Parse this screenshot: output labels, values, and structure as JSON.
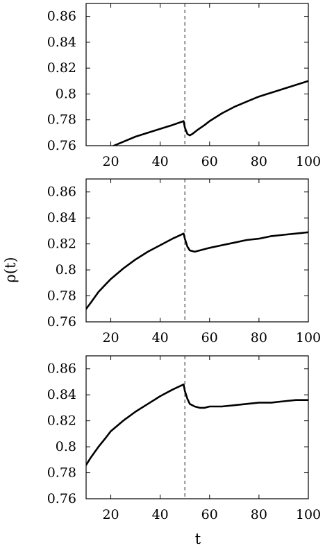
{
  "chart_data": [
    {
      "type": "line",
      "xlim": [
        10,
        100
      ],
      "ylim": [
        0.76,
        0.87
      ],
      "xticks": [
        20,
        40,
        60,
        80,
        100
      ],
      "yticks": [
        0.76,
        0.78,
        0.8,
        0.82,
        0.84,
        0.86
      ],
      "xtick_labels": [
        "20",
        "40",
        "60",
        "80",
        "100"
      ],
      "ytick_labels": [
        "0.76",
        "0.78",
        "0.8",
        "0.82",
        "0.84",
        "0.86"
      ],
      "vline_x": 50,
      "grid": false,
      "series": [
        {
          "x": [
            20,
            25,
            30,
            35,
            40,
            45,
            49.5,
            50,
            51,
            52,
            53,
            55,
            58,
            60,
            65,
            70,
            75,
            80,
            85,
            90,
            95,
            100
          ],
          "y": [
            0.759,
            0.763,
            0.767,
            0.77,
            0.773,
            0.776,
            0.779,
            0.774,
            0.769,
            0.768,
            0.769,
            0.772,
            0.776,
            0.779,
            0.785,
            0.79,
            0.794,
            0.798,
            0.801,
            0.804,
            0.807,
            0.81
          ]
        }
      ]
    },
    {
      "type": "line",
      "xlim": [
        10,
        100
      ],
      "ylim": [
        0.76,
        0.87
      ],
      "xticks": [
        20,
        40,
        60,
        80,
        100
      ],
      "yticks": [
        0.76,
        0.78,
        0.8,
        0.82,
        0.84,
        0.86
      ],
      "xtick_labels": [
        "20",
        "40",
        "60",
        "80",
        "100"
      ],
      "ytick_labels": [
        "0.76",
        "0.78",
        "0.8",
        "0.82",
        "0.84",
        "0.86"
      ],
      "vline_x": 50,
      "grid": false,
      "series": [
        {
          "x": [
            10,
            12,
            15,
            18,
            20,
            25,
            30,
            35,
            40,
            45,
            49.5,
            50,
            51,
            52,
            54,
            56,
            60,
            65,
            70,
            75,
            80,
            85,
            90,
            95,
            100
          ],
          "y": [
            0.77,
            0.775,
            0.783,
            0.789,
            0.793,
            0.801,
            0.808,
            0.814,
            0.819,
            0.824,
            0.828,
            0.824,
            0.818,
            0.815,
            0.814,
            0.815,
            0.817,
            0.819,
            0.821,
            0.823,
            0.824,
            0.826,
            0.827,
            0.828,
            0.829
          ]
        }
      ]
    },
    {
      "type": "line",
      "xlim": [
        10,
        100
      ],
      "ylim": [
        0.76,
        0.87
      ],
      "xticks": [
        20,
        40,
        60,
        80,
        100
      ],
      "yticks": [
        0.76,
        0.78,
        0.8,
        0.82,
        0.84,
        0.86
      ],
      "xtick_labels": [
        "20",
        "40",
        "60",
        "80",
        "100"
      ],
      "ytick_labels": [
        "0.76",
        "0.78",
        "0.8",
        "0.82",
        "0.84",
        "0.86"
      ],
      "vline_x": 50,
      "grid": false,
      "series": [
        {
          "x": [
            10,
            12,
            15,
            18,
            20,
            25,
            30,
            35,
            40,
            45,
            49.5,
            50,
            51,
            52,
            54,
            56,
            58,
            60,
            65,
            70,
            75,
            80,
            85,
            90,
            95,
            100
          ],
          "y": [
            0.786,
            0.792,
            0.8,
            0.807,
            0.812,
            0.82,
            0.827,
            0.833,
            0.839,
            0.844,
            0.848,
            0.843,
            0.837,
            0.833,
            0.831,
            0.83,
            0.83,
            0.831,
            0.831,
            0.832,
            0.833,
            0.834,
            0.834,
            0.835,
            0.836,
            0.836
          ]
        }
      ]
    }
  ],
  "axes": {
    "xlabel": "t",
    "ylabel": "ρ(t)"
  }
}
